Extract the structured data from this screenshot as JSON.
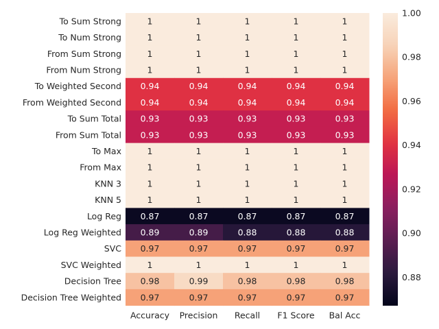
{
  "chart_data": {
    "type": "heatmap",
    "title": "",
    "xlabel": "",
    "ylabel": "",
    "columns": [
      "Accuracy",
      "Precision",
      "Recall",
      "F1 Score",
      "Bal Acc"
    ],
    "rows": [
      "To Sum Strong",
      "To Num Strong",
      "From Sum Strong",
      "From Num Strong",
      "To Weighted Second",
      "From Weighted Second",
      "To Sum Total",
      "From Sum Total",
      "To Max",
      "From Max",
      "KNN 3",
      "KNN 5",
      "Log Reg",
      "Log Reg Weighted",
      "SVC",
      "SVC Weighted",
      "Decision Tree",
      "Decision Tree Weighted"
    ],
    "values": [
      [
        1,
        1,
        1,
        1,
        1
      ],
      [
        1,
        1,
        1,
        1,
        1
      ],
      [
        1,
        1,
        1,
        1,
        1
      ],
      [
        1,
        1,
        1,
        1,
        1
      ],
      [
        0.94,
        0.94,
        0.94,
        0.94,
        0.94
      ],
      [
        0.94,
        0.94,
        0.94,
        0.94,
        0.94
      ],
      [
        0.93,
        0.93,
        0.93,
        0.93,
        0.93
      ],
      [
        0.93,
        0.93,
        0.93,
        0.93,
        0.93
      ],
      [
        1,
        1,
        1,
        1,
        1
      ],
      [
        1,
        1,
        1,
        1,
        1
      ],
      [
        1,
        1,
        1,
        1,
        1
      ],
      [
        1,
        1,
        1,
        1,
        1
      ],
      [
        0.87,
        0.87,
        0.87,
        0.87,
        0.87
      ],
      [
        0.89,
        0.89,
        0.88,
        0.88,
        0.88
      ],
      [
        0.97,
        0.97,
        0.97,
        0.97,
        0.97
      ],
      [
        1,
        1,
        1,
        1,
        1
      ],
      [
        0.98,
        0.99,
        0.98,
        0.98,
        0.98
      ],
      [
        0.97,
        0.97,
        0.97,
        0.97,
        0.97
      ]
    ],
    "colorbar": {
      "min": 0.867,
      "max": 1.0,
      "ticks": [
        0.88,
        0.9,
        0.92,
        0.94,
        0.96,
        0.98,
        1.0
      ],
      "tick_labels": [
        "0.88",
        "0.90",
        "0.92",
        "0.94",
        "0.96",
        "0.98",
        "1.00"
      ],
      "colormap": "rocket"
    },
    "colormap_stops": [
      "#03051a",
      "#2b1a3d",
      "#5a1e51",
      "#8a1f5f",
      "#ba1656",
      "#e13342",
      "#f26c42",
      "#f6a47a",
      "#f7d3b8",
      "#faebdd"
    ],
    "light_text_color": "#ffffff",
    "dark_text_color": "#262626"
  }
}
